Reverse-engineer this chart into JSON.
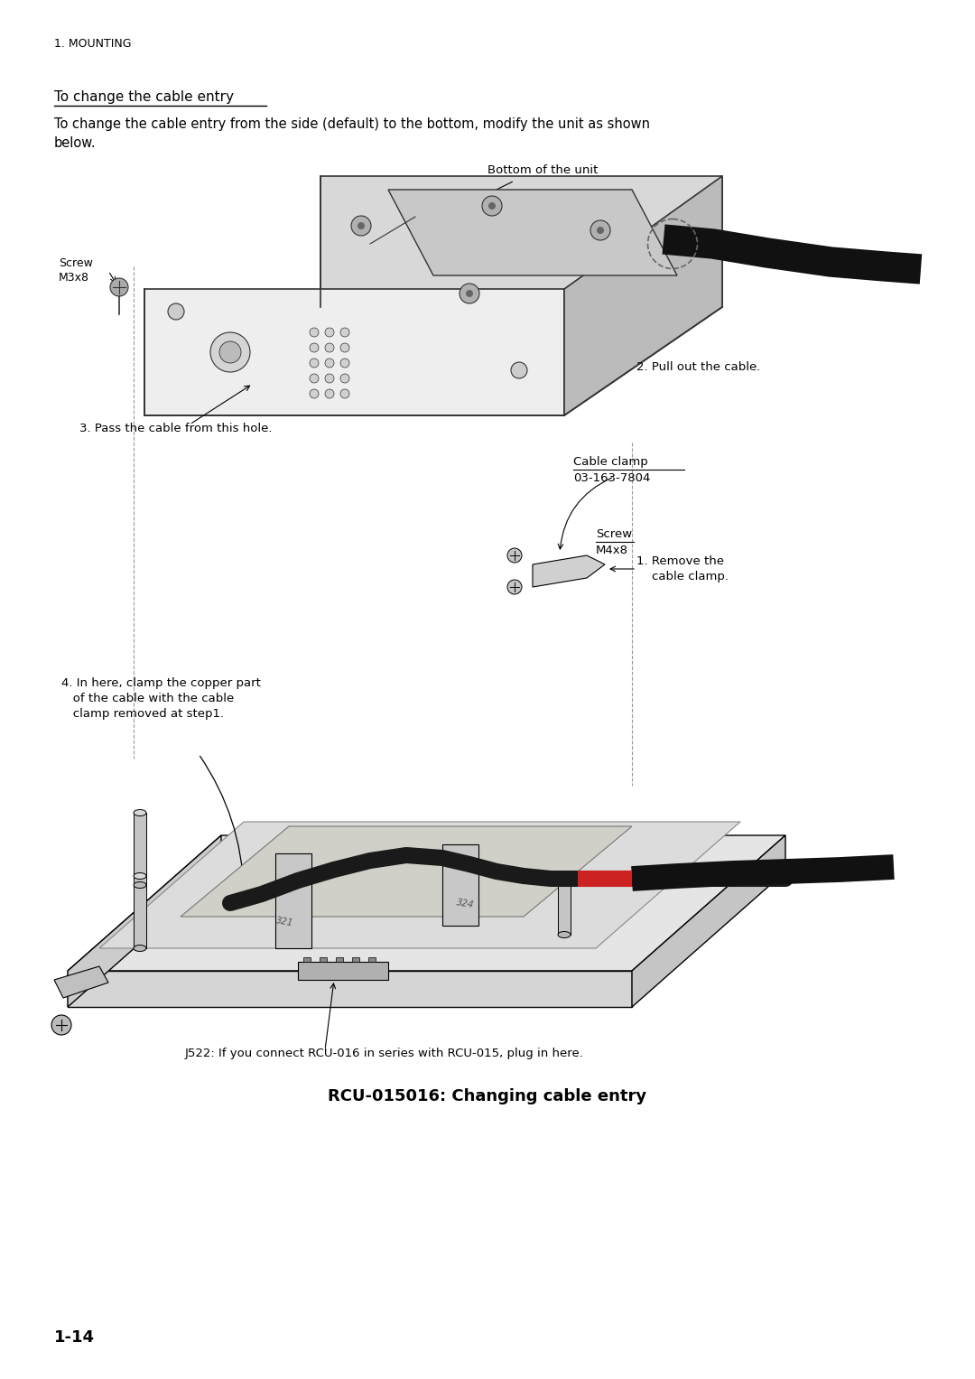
{
  "bg_color": "#ffffff",
  "page_width": 10.8,
  "page_height": 15.27,
  "header_text": "1. MOUNTING",
  "section_title": "To change the cable entry",
  "body_text": "To change the cable entry from the side (default) to the bottom, modify the unit as shown\nbelow.",
  "caption_text": "J522: If you connect RCU-016 in series with RCU-015, plug in here.",
  "figure_title": "RCU-015016: Changing cable entry",
  "page_number": "1-14",
  "label_screw_top": "Screw\nM3x8",
  "label_bottom_unit": "Bottom of the unit",
  "label_pull_cable": "2. Pull out the cable.",
  "label_pass_cable": "3. Pass the cable from this hole.",
  "label_cable_clamp": "Cable clamp\n03-163-7804",
  "label_screw_m4x8": "Screw\nM4x8",
  "label_remove_clamp": "1. Remove the\n    cable clamp.",
  "label_clamp_copper": "4. In here, clamp the copper part\n   of the cable with the cable\n   clamp removed at step1."
}
